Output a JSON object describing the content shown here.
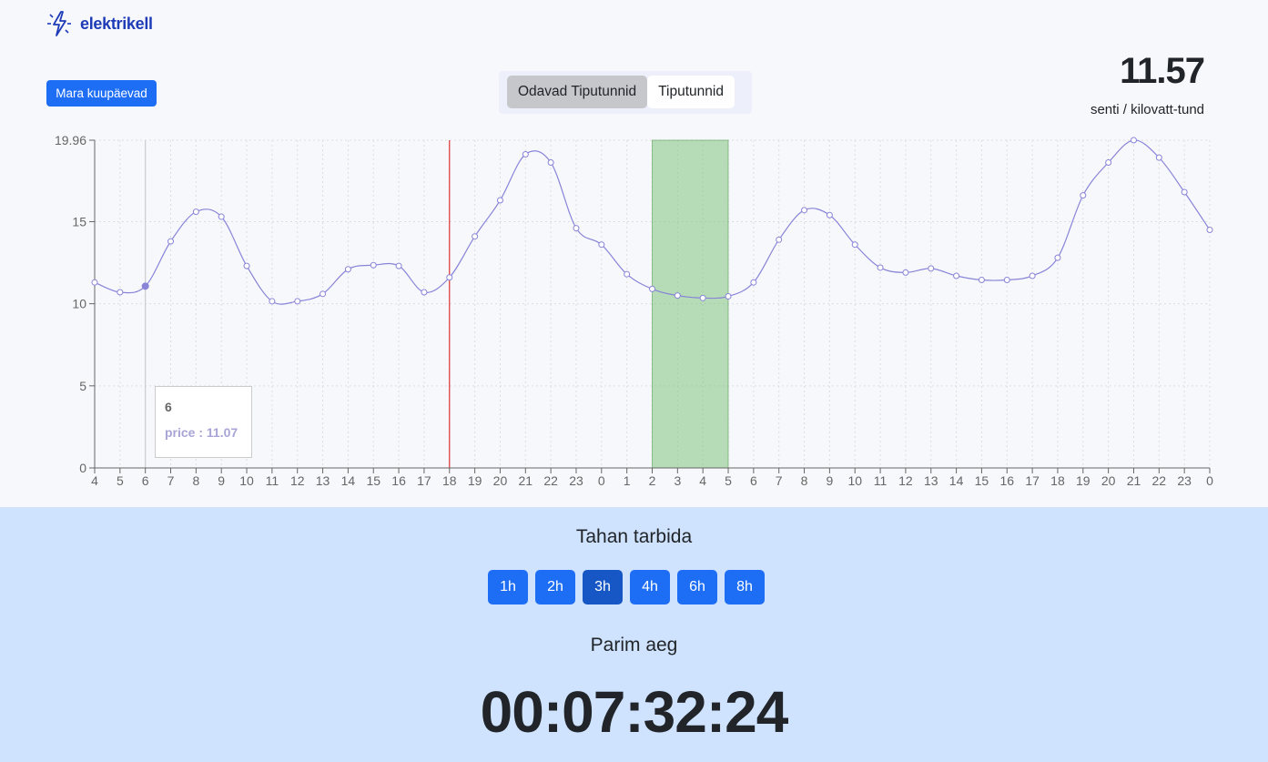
{
  "brand": {
    "name": "elektrikell",
    "icon": "lightning-bolt-icon"
  },
  "controls": {
    "dates_button": "Mara kuupäevad",
    "toggle": {
      "option_active": "Odavad Tiputunnid",
      "option_inactive": "Tiputunnid"
    }
  },
  "current_price": {
    "value": "11.57",
    "unit": "senti / kilovatt-tund"
  },
  "tooltip": {
    "label": "6",
    "text": "price : 11.07"
  },
  "colors": {
    "accent": "#1d6ef5",
    "line": "#8884d8",
    "current_hour_line": "#e03131",
    "cheap_area": "#82c37f"
  },
  "chart_data": {
    "type": "line",
    "x": [
      "4",
      "5",
      "6",
      "7",
      "8",
      "9",
      "10",
      "11",
      "12",
      "13",
      "14",
      "15",
      "16",
      "17",
      "18",
      "19",
      "20",
      "21",
      "22",
      "23",
      "0",
      "1",
      "2",
      "3",
      "4",
      "5",
      "6",
      "7",
      "8",
      "9",
      "10",
      "11",
      "12",
      "13",
      "14",
      "15",
      "16",
      "17",
      "18",
      "19",
      "20",
      "21",
      "22",
      "23",
      "0"
    ],
    "series": [
      {
        "values": [
          11.3,
          10.7,
          11.07,
          13.8,
          15.6,
          15.3,
          12.3,
          10.15,
          10.15,
          10.6,
          12.1,
          12.35,
          12.3,
          10.7,
          11.6,
          14.1,
          16.3,
          19.1,
          18.6,
          14.6,
          13.6,
          11.8,
          10.9,
          10.5,
          10.35,
          10.45,
          11.3,
          13.9,
          15.7,
          15.4,
          13.6,
          12.2,
          11.9,
          12.15,
          11.7,
          11.45,
          11.45,
          11.7,
          12.8,
          16.6,
          18.6,
          19.96,
          18.9,
          16.8,
          14.5
        ]
      }
    ],
    "y_ticks": [
      "0",
      "5",
      "10",
      "15",
      "19.96"
    ],
    "ylim": [
      0,
      19.96
    ],
    "current_hour_index": 14,
    "hover_index": 2,
    "cheap_window": {
      "start_index": 22,
      "end_index": 25
    },
    "grid": true
  },
  "consumption": {
    "title": "Tahan tarbida",
    "durations": [
      "1h",
      "2h",
      "3h",
      "4h",
      "6h",
      "8h"
    ],
    "selected": "3h",
    "best_time_title": "Parim aeg",
    "countdown": "00:07:32:24"
  }
}
